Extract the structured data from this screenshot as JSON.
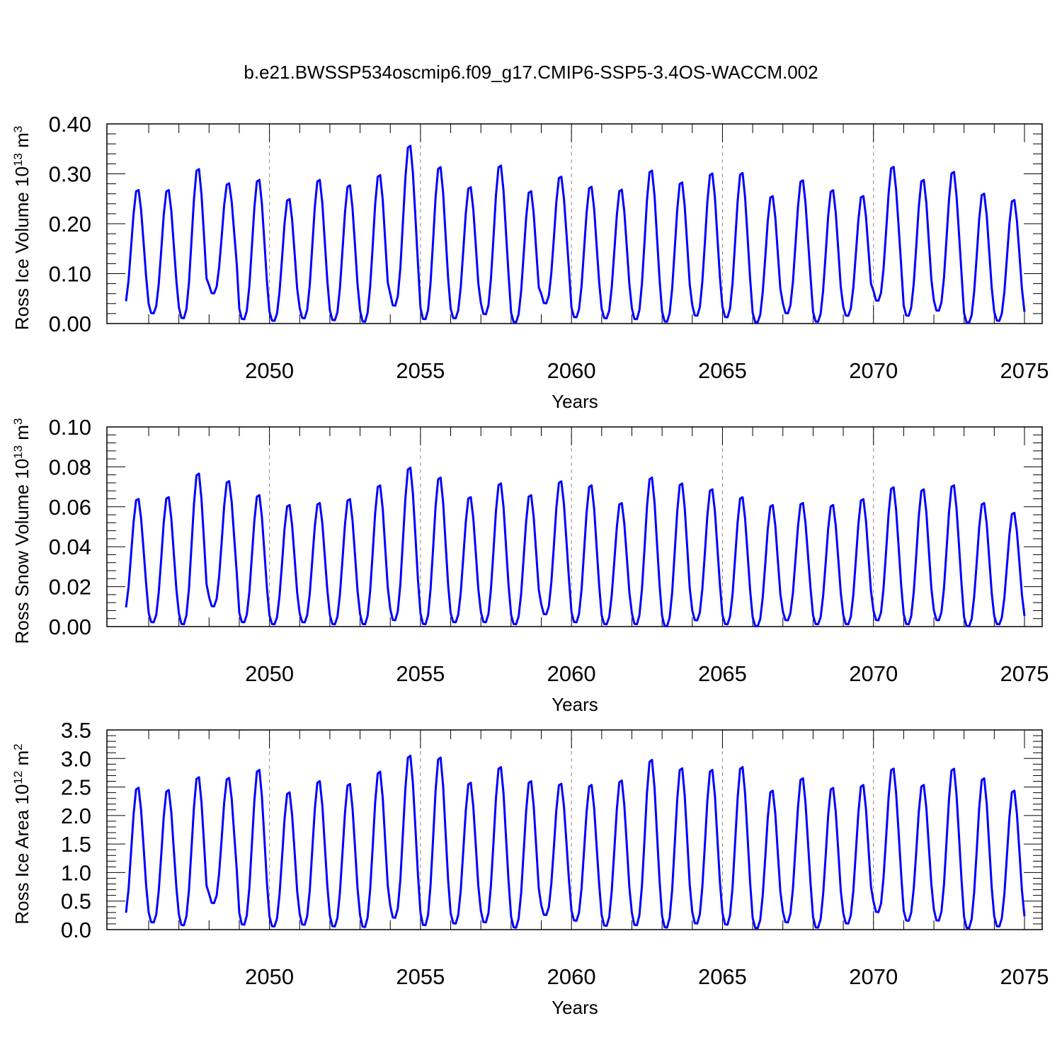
{
  "title": "b.e21.BWSSP534oscmip6.f09_g17.CMIP6-SSP5-3.4OS-WACCM.002",
  "colors": {
    "line": "#0000ff",
    "axis": "#000000",
    "grid": "#888888"
  },
  "chart_data": [
    {
      "type": "line",
      "xlabel": "Years",
      "ylabel": {
        "main": "Ross Ice Volume 10",
        "sup": "13",
        "unit": " m",
        "unit_sup": "3"
      },
      "xlim": [
        2045.25,
        2075.0
      ],
      "ylim": [
        0.0,
        0.4
      ],
      "x_tick_labels": [
        "2050",
        "2055",
        "2060",
        "2065",
        "2070",
        "2075"
      ],
      "y_tick_labels": [
        "0.00",
        "0.10",
        "0.20",
        "0.30",
        "0.40"
      ],
      "yearly_peaks": [
        0.272,
        0.272,
        0.315,
        0.285,
        0.293,
        0.254,
        0.293,
        0.282,
        0.303,
        0.362,
        0.319,
        0.278,
        0.322,
        0.27,
        0.299,
        0.279,
        0.273,
        0.312,
        0.288,
        0.306,
        0.307,
        0.26,
        0.292,
        0.272,
        0.26,
        0.319,
        0.293,
        0.309,
        0.265,
        0.252
      ],
      "yearly_minima": [
        0.03,
        0.02,
        0.01,
        0.06,
        0.008,
        0.005,
        0.01,
        0.006,
        0.003,
        0.035,
        0.008,
        0.01,
        0.018,
        0.002,
        0.04,
        0.012,
        0.01,
        0.008,
        0.003,
        0.015,
        0.012,
        0.002,
        0.02,
        0.003,
        0.015,
        0.045,
        0.015,
        0.025,
        0.001,
        0.005
      ],
      "grid": "vertical dashed at labeled years"
    },
    {
      "type": "line",
      "xlabel": "Years",
      "ylabel": {
        "main": "Ross Snow Volume 10",
        "sup": "13",
        "unit": " m",
        "unit_sup": "3"
      },
      "xlim": [
        2045.25,
        2075.0
      ],
      "ylim": [
        0.0,
        0.1
      ],
      "x_tick_labels": [
        "2050",
        "2055",
        "2060",
        "2065",
        "2070",
        "2075"
      ],
      "y_tick_labels": [
        "0.00",
        "0.02",
        "0.04",
        "0.06",
        "0.08",
        "0.10"
      ],
      "yearly_peaks": [
        0.065,
        0.066,
        0.078,
        0.074,
        0.067,
        0.062,
        0.063,
        0.065,
        0.072,
        0.081,
        0.076,
        0.066,
        0.073,
        0.067,
        0.074,
        0.072,
        0.063,
        0.076,
        0.073,
        0.07,
        0.066,
        0.062,
        0.063,
        0.062,
        0.065,
        0.071,
        0.07,
        0.072,
        0.063,
        0.058
      ],
      "yearly_minima": [
        0.006,
        0.002,
        0.001,
        0.01,
        0.002,
        0.001,
        0.002,
        0.001,
        0.001,
        0.003,
        0.001,
        0.002,
        0.002,
        0.001,
        0.006,
        0.002,
        0.001,
        0.001,
        0.0,
        0.003,
        0.001,
        0.0,
        0.003,
        0.001,
        0.001,
        0.003,
        0.001,
        0.003,
        0.0,
        0.001
      ],
      "grid": "vertical dashed at labeled years"
    },
    {
      "type": "line",
      "xlabel": "Years",
      "ylabel": {
        "main": "Ross Ice Area 10",
        "sup": "12",
        "unit": " m",
        "unit_sup": "2"
      },
      "xlim": [
        2045.25,
        2075.0
      ],
      "ylim": [
        0.0,
        3.5
      ],
      "x_tick_labels": [
        "2050",
        "2055",
        "2060",
        "2065",
        "2070",
        "2075"
      ],
      "y_tick_labels": [
        "0.0",
        "0.5",
        "1.0",
        "1.5",
        "2.0",
        "2.5",
        "3.0",
        "3.5"
      ],
      "yearly_peaks": [
        2.53,
        2.49,
        2.72,
        2.7,
        2.85,
        2.45,
        2.65,
        2.6,
        2.82,
        3.1,
        3.07,
        2.62,
        2.9,
        2.65,
        2.6,
        2.58,
        2.66,
        3.03,
        2.88,
        2.85,
        2.9,
        2.48,
        2.7,
        2.53,
        2.58,
        2.87,
        2.58,
        2.87,
        2.7,
        2.48
      ],
      "yearly_minima": [
        0.15,
        0.12,
        0.07,
        0.46,
        0.08,
        0.05,
        0.08,
        0.05,
        0.04,
        0.2,
        0.07,
        0.1,
        0.12,
        0.03,
        0.25,
        0.15,
        0.06,
        0.07,
        0.03,
        0.1,
        0.08,
        0.02,
        0.12,
        0.03,
        0.1,
        0.3,
        0.15,
        0.15,
        0.02,
        0.05
      ],
      "grid": "vertical dashed at labeled years"
    }
  ]
}
